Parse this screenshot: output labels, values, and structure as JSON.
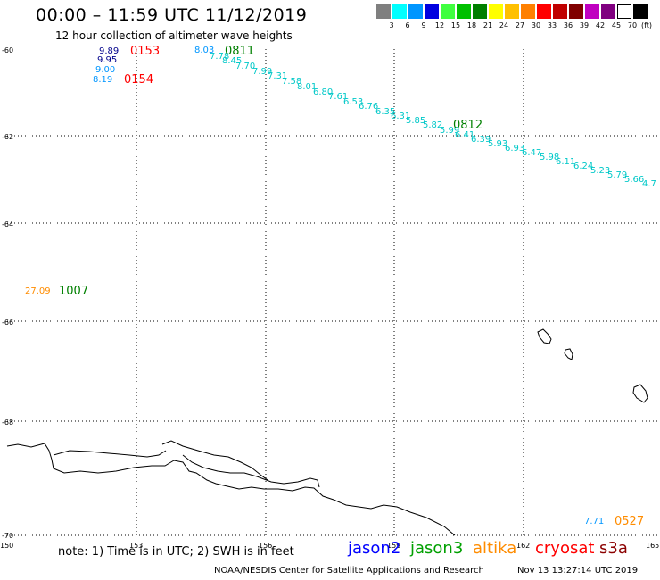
{
  "header": {
    "title": "00:00 – 11:59 UTC 11/12/2019",
    "subtitle": "12 hour collection of altimeter wave heights"
  },
  "legend": {
    "colors": [
      "#7f7f7f",
      "#00ffff",
      "#0096ff",
      "#0000e0",
      "#40ff40",
      "#00c000",
      "#007f00",
      "#ffff00",
      "#ffc000",
      "#ff8000",
      "#ff0000",
      "#c00000",
      "#800000",
      "#c000c0",
      "#800080",
      "#ffffff",
      "#000000"
    ],
    "labels": [
      "3",
      "6",
      "9",
      "12",
      "15",
      "18",
      "21",
      "24",
      "27",
      "30",
      "33",
      "36",
      "39",
      "42",
      "45",
      "70",
      "(ft)"
    ]
  },
  "axes": {
    "lat_labels": [
      "-60",
      "-62",
      "-64",
      "-66",
      "-68",
      "-70"
    ],
    "lon_labels": [
      "150",
      "153",
      "156",
      "159",
      "162",
      "165"
    ]
  },
  "observations": [
    {
      "text": "9.89",
      "color": "#00008b"
    },
    {
      "text": "9.95",
      "color": "#00008b"
    },
    {
      "text": "9.00",
      "color": "#0096ff"
    },
    {
      "text": "8.19",
      "color": "#0096ff"
    },
    {
      "text": "8.03",
      "color": "#0096ff"
    },
    {
      "text": "7.78",
      "color": "#00c8c8"
    },
    {
      "text": "8.45",
      "color": "#00c8c8"
    },
    {
      "text": "7.70",
      "color": "#00c8c8"
    },
    {
      "text": "7.99",
      "color": "#00c8c8"
    },
    {
      "text": "7.31",
      "color": "#00c8c8"
    },
    {
      "text": "7.58",
      "color": "#00c8c8"
    },
    {
      "text": "8.01",
      "color": "#00c8c8"
    },
    {
      "text": "6.80",
      "color": "#00c8c8"
    },
    {
      "text": "7.61",
      "color": "#00c8c8"
    },
    {
      "text": "6.53",
      "color": "#00c8c8"
    },
    {
      "text": "6.76",
      "color": "#00c8c8"
    },
    {
      "text": "6.35",
      "color": "#00c8c8"
    },
    {
      "text": "6.31",
      "color": "#00c8c8"
    },
    {
      "text": "5.85",
      "color": "#00c8c8"
    },
    {
      "text": "5.82",
      "color": "#00c8c8"
    },
    {
      "text": "5.99",
      "color": "#00c8c8"
    },
    {
      "text": "6.41",
      "color": "#00c8c8"
    },
    {
      "text": "6.39",
      "color": "#00c8c8"
    },
    {
      "text": "5.93",
      "color": "#00c8c8"
    },
    {
      "text": "6.93",
      "color": "#00c8c8"
    },
    {
      "text": "6.47",
      "color": "#00c8c8"
    },
    {
      "text": "5.98",
      "color": "#00c8c8"
    },
    {
      "text": "6.11",
      "color": "#00c8c8"
    },
    {
      "text": "6.24",
      "color": "#00c8c8"
    },
    {
      "text": "5.23",
      "color": "#00c8c8"
    },
    {
      "text": "5.79",
      "color": "#00c8c8"
    },
    {
      "text": "5.66",
      "color": "#00c8c8"
    },
    {
      "text": "4.7",
      "color": "#00c8c8"
    },
    {
      "text": "27.09",
      "color": "#ff8c00"
    },
    {
      "text": "7.71",
      "color": "#0096ff"
    }
  ],
  "pass_times": [
    {
      "text": "0153",
      "color": "#ff0000"
    },
    {
      "text": "0154",
      "color": "#ff0000"
    },
    {
      "text": "0811",
      "color": "#008000"
    },
    {
      "text": "0812",
      "color": "#008000"
    },
    {
      "text": "1007",
      "color": "#008000"
    },
    {
      "text": "0527",
      "color": "#ff8c00"
    }
  ],
  "footer": {
    "note": "note: 1) Time is in UTC; 2) SWH is in feet",
    "satellites": [
      {
        "name": "jason2",
        "color": "#0000ff"
      },
      {
        "name": "jason3",
        "color": "#00a000"
      },
      {
        "name": "altika",
        "color": "#ff8c00"
      },
      {
        "name": "cryosat",
        "color": "#ff0000"
      },
      {
        "name": "s3a",
        "color": "#8b0000"
      }
    ],
    "credit": "NOAA/NESDIS Center for Satellite Applications and Research",
    "timestamp": "Nov 13 13:27:14 UTC 2019"
  }
}
